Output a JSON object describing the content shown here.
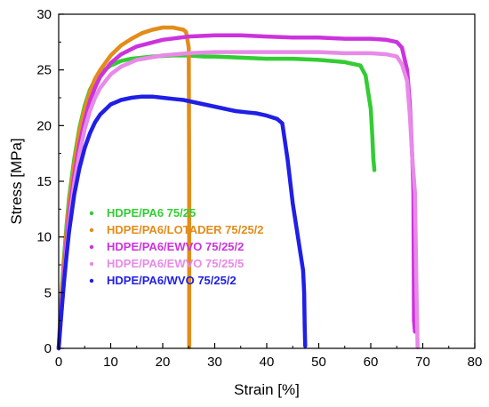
{
  "chart_data": {
    "type": "line",
    "title": "",
    "xlabel": "Strain [%]",
    "ylabel": "Stress [MPa]",
    "xlim": [
      0,
      80
    ],
    "ylim": [
      0,
      30
    ],
    "xticks": [
      "0",
      "10",
      "20",
      "30",
      "40",
      "50",
      "60",
      "70",
      "80"
    ],
    "yticks": [
      "0",
      "5",
      "10",
      "15",
      "20",
      "25",
      "30"
    ],
    "grid": false,
    "legend_position": "center-left",
    "series": [
      {
        "name": "HDPE/PA6 75/25",
        "color": "#33cc33",
        "x": [
          0,
          0.5,
          1,
          1.5,
          2,
          3,
          4,
          5,
          6,
          7,
          8,
          10,
          12,
          14,
          16,
          18,
          20,
          22,
          25,
          28,
          30,
          35,
          40,
          45,
          50,
          55,
          58,
          59,
          60,
          60.3,
          60.5,
          60.7
        ],
        "y": [
          0,
          4.5,
          8,
          11,
          13.5,
          17,
          19.8,
          21.8,
          23.2,
          24.1,
          24.7,
          25.4,
          25.8,
          26.0,
          26.1,
          26.2,
          26.25,
          26.3,
          26.3,
          26.2,
          26.2,
          26.1,
          26.0,
          26.0,
          25.9,
          25.7,
          25.4,
          24.5,
          21.5,
          19.0,
          17.0,
          16.0
        ]
      },
      {
        "name": "HDPE/PA6/LOTADER 75/25/2",
        "color": "#e38c1a",
        "x": [
          0,
          0.5,
          1,
          1.5,
          2,
          3,
          4,
          5,
          6,
          7,
          8,
          10,
          12,
          14,
          16,
          18,
          20,
          22,
          23,
          24,
          24.5,
          25,
          25.1,
          25.1,
          25.1,
          25.1
        ],
        "y": [
          0,
          4.0,
          7.5,
          10.5,
          13.0,
          16.5,
          19.5,
          21.5,
          23.0,
          24.2,
          25.0,
          26.3,
          27.2,
          27.8,
          28.3,
          28.6,
          28.8,
          28.8,
          28.7,
          28.6,
          28.4,
          27.0,
          14.8,
          4.2,
          3.5,
          0.1
        ]
      },
      {
        "name": "HDPE/PA6/EWVO 75/25/2",
        "color": "#cc33dd",
        "x": [
          0,
          0.5,
          1,
          1.5,
          2,
          3,
          4,
          5,
          6,
          7,
          8,
          10,
          12,
          15,
          20,
          25,
          30,
          35,
          40,
          45,
          50,
          55,
          60,
          63,
          65,
          66,
          67,
          67.5,
          68,
          68.2,
          68.3,
          68.5
        ],
        "y": [
          0,
          3.5,
          6.5,
          9.5,
          12.0,
          15.5,
          18.3,
          20.5,
          22.2,
          23.4,
          24.4,
          25.6,
          26.4,
          27.1,
          27.7,
          28.0,
          28.1,
          28.1,
          28.0,
          27.9,
          27.9,
          27.8,
          27.8,
          27.7,
          27.5,
          27.0,
          25.0,
          22.0,
          17.0,
          14.0,
          2.5,
          1.5
        ]
      },
      {
        "name": "HDPE/PA6/EWVO 75/25/5",
        "color": "#e88ae8",
        "x": [
          0,
          0.5,
          1,
          1.5,
          2,
          3,
          4,
          5,
          6,
          7,
          8,
          10,
          12,
          15,
          20,
          25,
          30,
          35,
          40,
          45,
          50,
          55,
          60,
          63,
          65,
          66,
          67,
          67.5,
          68,
          68.5,
          68.8,
          69
        ],
        "y": [
          0,
          3.0,
          6.0,
          8.8,
          11.2,
          14.8,
          17.5,
          19.7,
          21.3,
          22.5,
          23.4,
          24.6,
          25.3,
          25.9,
          26.3,
          26.5,
          26.6,
          26.6,
          26.6,
          26.6,
          26.6,
          26.5,
          26.5,
          26.4,
          26.2,
          25.5,
          24.0,
          21.0,
          17.0,
          14.0,
          5.0,
          0.1
        ]
      },
      {
        "name": "HDPE/PA6/WVO 75/25/2",
        "color": "#1f1fe6",
        "x": [
          0,
          0.5,
          1,
          1.5,
          2,
          3,
          4,
          5,
          6,
          7,
          8,
          10,
          12,
          14,
          16,
          18,
          20,
          22,
          24,
          26,
          28,
          30,
          32,
          34,
          36,
          38,
          40,
          42,
          43,
          44,
          45,
          46,
          47,
          47.2,
          47.3,
          47.4
        ],
        "y": [
          0,
          3.0,
          5.8,
          8.3,
          10.5,
          13.8,
          16.2,
          18.0,
          19.3,
          20.3,
          21.0,
          21.9,
          22.3,
          22.5,
          22.6,
          22.6,
          22.5,
          22.4,
          22.3,
          22.1,
          21.9,
          21.7,
          21.5,
          21.3,
          21.2,
          21.1,
          20.9,
          20.6,
          20.2,
          17.0,
          13.0,
          10.0,
          7.0,
          5.0,
          2.0,
          0.2
        ]
      }
    ]
  }
}
